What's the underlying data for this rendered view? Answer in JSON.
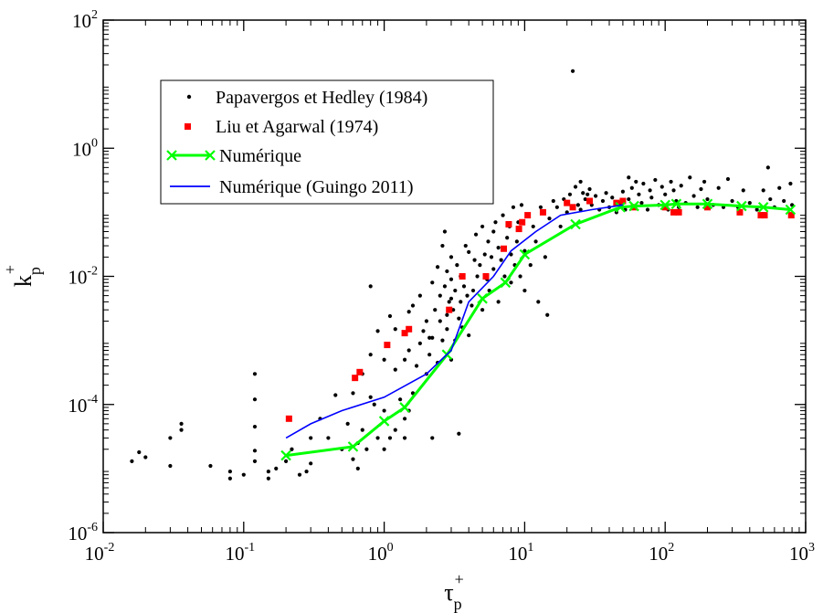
{
  "chart_data": {
    "type": "scatter",
    "xscale": "log",
    "yscale": "log",
    "xlim": [
      0.01,
      1000
    ],
    "ylim": [
      1e-06,
      100
    ],
    "xlabel": {
      "base": "τ",
      "sub": "p",
      "sup": "+"
    },
    "ylabel": {
      "base": "k",
      "sub": "p",
      "sup": "+"
    },
    "x_ticks": [
      {
        "value": 0.01,
        "base": "10",
        "exp": "-2"
      },
      {
        "value": 0.1,
        "base": "10",
        "exp": "-1"
      },
      {
        "value": 1,
        "base": "10",
        "exp": "0"
      },
      {
        "value": 10,
        "base": "10",
        "exp": "1"
      },
      {
        "value": 100,
        "base": "10",
        "exp": "2"
      },
      {
        "value": 1000,
        "base": "10",
        "exp": "3"
      }
    ],
    "y_ticks": [
      {
        "value": 1e-06,
        "base": "10",
        "exp": "-6"
      },
      {
        "value": 0.0001,
        "base": "10",
        "exp": "-4"
      },
      {
        "value": 0.01,
        "base": "10",
        "exp": "-2"
      },
      {
        "value": 1,
        "base": "10",
        "exp": "0"
      },
      {
        "value": 100,
        "base": "10",
        "exp": "2"
      }
    ],
    "grid": false,
    "legend_position": "top-left",
    "series": [
      {
        "name": "Papavergos et Hedley (1984)",
        "style": "dots",
        "color": "#000000",
        "points": [
          [
            0.016,
            1.3e-05
          ],
          [
            0.018,
            1.8e-05
          ],
          [
            0.02,
            1.5e-05
          ],
          [
            0.03,
            1.1e-05
          ],
          [
            0.03,
            3e-05
          ],
          [
            0.036,
            4e-05
          ],
          [
            0.036,
            5e-05
          ],
          [
            0.058,
            1.1e-05
          ],
          [
            0.08,
            7e-06
          ],
          [
            0.08,
            9e-06
          ],
          [
            0.1,
            8e-06
          ],
          [
            0.12,
            1.3e-05
          ],
          [
            0.12,
            1.9e-05
          ],
          [
            0.12,
            4.5e-05
          ],
          [
            0.12,
            0.00012
          ],
          [
            0.12,
            0.0003
          ],
          [
            0.15,
            7e-06
          ],
          [
            0.15,
            9e-06
          ],
          [
            0.17,
            1e-05
          ],
          [
            0.2,
            1.3e-05
          ],
          [
            0.22,
            2e-05
          ],
          [
            0.25,
            8e-06
          ],
          [
            0.28,
            9e-06
          ],
          [
            0.3,
            1.2e-05
          ],
          [
            0.3,
            3e-05
          ],
          [
            0.35,
            6e-05
          ],
          [
            0.4,
            3e-05
          ],
          [
            0.45,
            0.00014
          ],
          [
            0.5,
            2e-05
          ],
          [
            0.55,
            5e-05
          ],
          [
            0.6,
            1.4e-05
          ],
          [
            0.6,
            0.00015
          ],
          [
            0.65,
            1e-05
          ],
          [
            0.65,
            2.5e-05
          ],
          [
            0.7,
            4e-05
          ],
          [
            0.7,
            0.0003
          ],
          [
            0.75,
            2e-05
          ],
          [
            0.8,
            0.00013
          ],
          [
            0.8,
            0.0006
          ],
          [
            0.85,
            0.0001
          ],
          [
            0.9,
            3e-05
          ],
          [
            0.9,
            0.0014
          ],
          [
            0.8,
            0.007
          ],
          [
            1,
            2e-05
          ],
          [
            1,
            8e-05
          ],
          [
            1,
            0.0005
          ],
          [
            1.1,
            3e-05
          ],
          [
            1.1,
            0.0024
          ],
          [
            1.2,
            4e-05
          ],
          [
            1.2,
            0.00035
          ],
          [
            1.2,
            0.0015
          ],
          [
            1.3,
            0.00012
          ],
          [
            1.4,
            3e-05
          ],
          [
            1.4,
            6e-05
          ],
          [
            1.4,
            0.0005
          ],
          [
            1.5,
            8e-05
          ],
          [
            1.5,
            0.0007
          ],
          [
            1.5,
            0.0028
          ],
          [
            1.6,
            0.00015
          ],
          [
            1.6,
            0.0035
          ],
          [
            1.7,
            0.0004
          ],
          [
            1.8,
            0.0009
          ],
          [
            1.8,
            0.005
          ],
          [
            1.9,
            0.0014
          ],
          [
            2,
            0.0003
          ],
          [
            2,
            0.002
          ],
          [
            2.1,
            0.0006
          ],
          [
            2.2,
            3e-05
          ],
          [
            2.2,
            0.0011
          ],
          [
            2.2,
            0.008
          ],
          [
            2.3,
            0.003
          ],
          [
            2.4,
            0.00045
          ],
          [
            2.4,
            0.014
          ],
          [
            2.5,
            0.002
          ],
          [
            2.5,
            0.005
          ],
          [
            2.6,
            0.001
          ],
          [
            2.6,
            0.03
          ],
          [
            2.7,
            0.05
          ],
          [
            2.7,
            0.007
          ],
          [
            2.8,
            0.0015
          ],
          [
            2.8,
            0.0025
          ],
          [
            2.8,
            0.012
          ],
          [
            2.9,
            0.004
          ],
          [
            3,
            0.009
          ],
          [
            3,
            0.0005
          ],
          [
            3,
            0.02
          ],
          [
            3.1,
            0.003
          ],
          [
            3.2,
            0.001
          ],
          [
            3.2,
            0.006
          ],
          [
            3.3,
            0.015
          ],
          [
            3.4,
            3.5e-05
          ],
          [
            3.4,
            0.0022
          ],
          [
            3.5,
            0.004
          ],
          [
            3.5,
            0.01
          ],
          [
            3.6,
            0.0016
          ],
          [
            3.7,
            0.007
          ],
          [
            3.8,
            0.03
          ],
          [
            3.9,
            0.005
          ],
          [
            4,
            0.024
          ],
          [
            4,
            0.0012
          ],
          [
            4.2,
            0.0035
          ],
          [
            4.3,
            0.006
          ],
          [
            4.4,
            0.018
          ],
          [
            4.5,
            0.045
          ],
          [
            4.6,
            0.01
          ],
          [
            4.8,
            0.015
          ],
          [
            5,
            0.003
          ],
          [
            5,
            0.06
          ],
          [
            5.2,
            0.022
          ],
          [
            5.4,
            0.009
          ],
          [
            5.5,
            0.035
          ],
          [
            5.6,
            0.006
          ],
          [
            5.8,
            0.02
          ],
          [
            6,
            0.013
          ],
          [
            6,
            0.05
          ],
          [
            6.2,
            0.07
          ],
          [
            6.5,
            0.004
          ],
          [
            6.5,
            0.028
          ],
          [
            6.8,
            0.018
          ],
          [
            7,
            0.09
          ],
          [
            7.2,
            0.01
          ],
          [
            7.5,
            0.04
          ],
          [
            7.8,
            0.06
          ],
          [
            8,
            0.022
          ],
          [
            8,
            0.008
          ],
          [
            8.3,
            0.12
          ],
          [
            8.5,
            0.015
          ],
          [
            8.8,
            0.035
          ],
          [
            9,
            0.07
          ],
          [
            9.3,
            0.01
          ],
          [
            9.5,
            0.13
          ],
          [
            10,
            0.006
          ],
          [
            10,
            0.025
          ],
          [
            10.5,
            0.09
          ],
          [
            11,
            0.015
          ],
          [
            11.5,
            0.06
          ],
          [
            12,
            0.035
          ],
          [
            12.5,
            0.004
          ],
          [
            13,
            0.12
          ],
          [
            14,
            0.02
          ],
          [
            14.5,
            0.0025
          ],
          [
            15,
            0.08
          ],
          [
            16,
            0.15
          ],
          [
            17,
            0.12
          ],
          [
            18,
            0.06
          ],
          [
            19,
            0.16
          ],
          [
            20,
            0.1
          ],
          [
            21,
            0.19
          ],
          [
            22,
            16
          ],
          [
            23,
            0.25
          ],
          [
            24,
            0.13
          ],
          [
            25,
            0.3
          ],
          [
            25,
            0.11
          ],
          [
            26,
            0.2
          ],
          [
            27,
            0.16
          ],
          [
            28,
            0.19
          ],
          [
            29,
            0.23
          ],
          [
            30,
            0.13
          ],
          [
            32,
            0.18
          ],
          [
            34,
            0.11
          ],
          [
            36,
            0.15
          ],
          [
            38,
            0.2
          ],
          [
            40,
            0.12
          ],
          [
            42,
            0.17
          ],
          [
            45,
            0.1
          ],
          [
            48,
            0.14
          ],
          [
            50,
            0.21
          ],
          [
            52,
            0.11
          ],
          [
            55,
            0.35
          ],
          [
            55,
            0.16
          ],
          [
            58,
            0.24
          ],
          [
            60,
            0.12
          ],
          [
            62,
            0.3
          ],
          [
            65,
            0.19
          ],
          [
            68,
            0.14
          ],
          [
            70,
            0.28
          ],
          [
            75,
            0.11
          ],
          [
            78,
            0.22
          ],
          [
            80,
            0.17
          ],
          [
            85,
            0.32
          ],
          [
            90,
            0.13
          ],
          [
            95,
            0.25
          ],
          [
            100,
            0.19
          ],
          [
            105,
            0.11
          ],
          [
            110,
            0.3
          ],
          [
            115,
            0.22
          ],
          [
            120,
            0.15
          ],
          [
            125,
            0.12
          ],
          [
            130,
            0.26
          ],
          [
            140,
            0.14
          ],
          [
            150,
            0.35
          ],
          [
            160,
            0.18
          ],
          [
            170,
            0.12
          ],
          [
            180,
            0.23
          ],
          [
            190,
            0.3
          ],
          [
            200,
            0.16
          ],
          [
            220,
            0.13
          ],
          [
            240,
            0.24
          ],
          [
            260,
            0.12
          ],
          [
            280,
            0.33
          ],
          [
            300,
            0.15
          ],
          [
            330,
            0.12
          ],
          [
            360,
            0.22
          ],
          [
            400,
            0.14
          ],
          [
            450,
            0.11
          ],
          [
            500,
            0.22
          ],
          [
            540,
            0.5
          ],
          [
            560,
            0.16
          ],
          [
            600,
            0.12
          ],
          [
            650,
            0.24
          ],
          [
            700,
            0.15
          ],
          [
            780,
            0.28
          ],
          [
            800,
            0.13
          ],
          [
            3,
            0.0045
          ],
          [
            2.1,
            0.0011
          ]
        ]
      },
      {
        "name": "Liu et Agarwal (1974)",
        "style": "squares",
        "color": "#ff0000",
        "points": [
          [
            0.21,
            6e-05
          ],
          [
            0.62,
            0.00026
          ],
          [
            0.67,
            0.00032
          ],
          [
            1.05,
            0.00085
          ],
          [
            1.4,
            0.0013
          ],
          [
            1.5,
            0.0015
          ],
          [
            2.9,
            0.003
          ],
          [
            3.6,
            0.01
          ],
          [
            5.3,
            0.01
          ],
          [
            7.1,
            0.027
          ],
          [
            7.7,
            0.065
          ],
          [
            9.1,
            0.055
          ],
          [
            9.6,
            0.07
          ],
          [
            10.5,
            0.09
          ],
          [
            13.5,
            0.1
          ],
          [
            20,
            0.14
          ],
          [
            22,
            0.12
          ],
          [
            29,
            0.15
          ],
          [
            45,
            0.14
          ],
          [
            50,
            0.15
          ],
          [
            60,
            0.12
          ],
          [
            100,
            0.12
          ],
          [
            115,
            0.1
          ],
          [
            125,
            0.1
          ],
          [
            200,
            0.12
          ],
          [
            340,
            0.1
          ],
          [
            480,
            0.09
          ],
          [
            510,
            0.09
          ],
          [
            790,
            0.09
          ]
        ]
      },
      {
        "name": "Numérique",
        "style": "line-x",
        "color": "#00ff00",
        "points": [
          [
            0.2,
            1.6e-05
          ],
          [
            0.6,
            2.2e-05
          ],
          [
            1,
            5.5e-05
          ],
          [
            1.4,
            9e-05
          ],
          [
            2.8,
            0.0006
          ],
          [
            5,
            0.0045
          ],
          [
            7.3,
            0.008
          ],
          [
            10,
            0.022
          ],
          [
            23,
            0.065
          ],
          [
            48,
            0.12
          ],
          [
            60,
            0.125
          ],
          [
            100,
            0.13
          ],
          [
            120,
            0.135
          ],
          [
            200,
            0.135
          ],
          [
            350,
            0.125
          ],
          [
            500,
            0.12
          ],
          [
            780,
            0.11
          ]
        ]
      },
      {
        "name": "Numérique (Guingo 2011)",
        "style": "line",
        "color": "#0000ff",
        "points": [
          [
            0.2,
            3e-05
          ],
          [
            0.3,
            5e-05
          ],
          [
            0.5,
            8e-05
          ],
          [
            1,
            0.00013
          ],
          [
            2,
            0.0003
          ],
          [
            3,
            0.0007
          ],
          [
            4,
            0.004
          ],
          [
            6,
            0.01
          ],
          [
            8,
            0.025
          ],
          [
            12,
            0.05
          ],
          [
            18,
            0.09
          ],
          [
            30,
            0.11
          ],
          [
            50,
            0.13
          ]
        ]
      }
    ]
  }
}
